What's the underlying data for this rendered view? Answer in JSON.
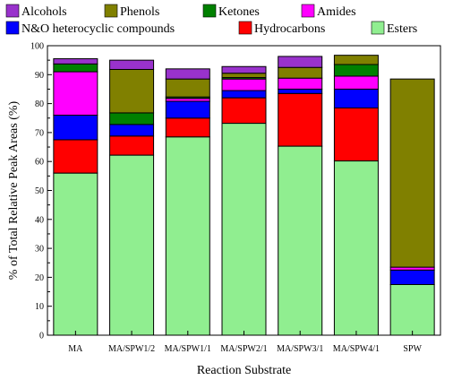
{
  "chart_data": {
    "type": "bar",
    "stacked": true,
    "xlabel": "Reaction Substrate",
    "ylabel": "% of Total Relative Peak Areas (%)",
    "ylim": [
      0,
      100
    ],
    "yticks": [
      0,
      10,
      20,
      30,
      40,
      50,
      60,
      70,
      80,
      90,
      100
    ],
    "grid": false,
    "legend_position": "top",
    "categories": [
      "MA",
      "MA/SPW1/2",
      "MA/SPW1/1",
      "MA/SPW2/1",
      "MA/SPW3/1",
      "MA/SPW4/1",
      "SPW"
    ],
    "series": [
      {
        "name": "Esters",
        "color": "#90ee90",
        "values": [
          56.0,
          62.2,
          68.5,
          73.2,
          65.3,
          60.2,
          17.5
        ]
      },
      {
        "name": "Hydrocarbons",
        "color": "#ff0000",
        "values": [
          11.5,
          6.6,
          6.5,
          8.8,
          18.2,
          18.3,
          0.0
        ]
      },
      {
        "name": "N&O heterocyclic compounds",
        "color": "#0000ff",
        "values": [
          8.5,
          4.0,
          5.8,
          2.5,
          1.5,
          6.5,
          5.0
        ]
      },
      {
        "name": "Amides",
        "color": "#ff00ff",
        "values": [
          15.0,
          0.0,
          1.0,
          4.0,
          3.8,
          4.5,
          1.0
        ]
      },
      {
        "name": "Ketones",
        "color": "#008000",
        "values": [
          2.7,
          4.0,
          0.5,
          0.5,
          0.0,
          4.0,
          0.0
        ]
      },
      {
        "name": "Phenols",
        "color": "#808000",
        "values": [
          0.0,
          15.0,
          6.2,
          1.5,
          3.7,
          3.2,
          65.0
        ]
      },
      {
        "name": "Alcohols",
        "color": "#9932cc",
        "values": [
          1.8,
          3.2,
          3.5,
          2.3,
          3.8,
          0.0,
          0.0
        ]
      }
    ],
    "legend_rows": [
      [
        "Alcohols",
        "Phenols",
        "Ketones",
        "Amides"
      ],
      [
        "N&O heterocyclic compounds",
        "Hydrocarbons",
        "Esters"
      ]
    ]
  }
}
